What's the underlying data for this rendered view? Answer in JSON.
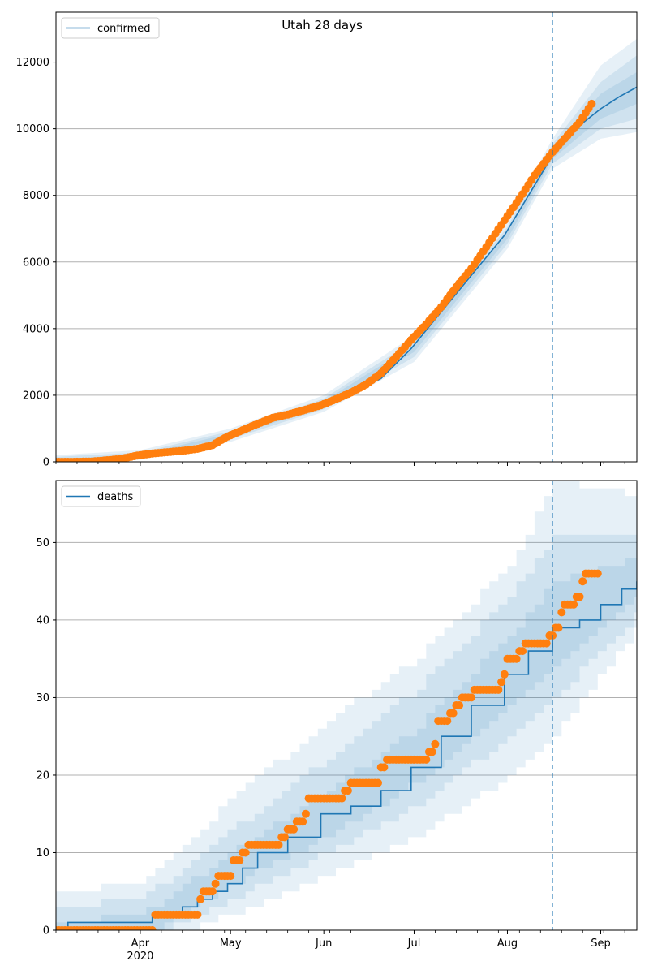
{
  "figure": {
    "title": "Utah 28 days"
  },
  "chart_data": [
    {
      "type": "line",
      "legend": {
        "label": "confirmed",
        "placement": "top-left"
      },
      "x_axis": {
        "tick_labels": [
          "Apr",
          "May",
          "Jun",
          "Jul",
          "Aug",
          "Sep"
        ],
        "tick_dates": [
          "2020-04-01",
          "2020-05-01",
          "2020-06-01",
          "2020-07-01",
          "2020-08-01",
          "2020-09-01"
        ],
        "year_label": "2020",
        "range": [
          "2020-03-04",
          "2020-09-13"
        ]
      },
      "y_axis": {
        "ticks": [
          0,
          2000,
          4000,
          6000,
          8000,
          10000,
          12000
        ],
        "range": [
          0,
          13500
        ]
      },
      "grid": "horizontal",
      "forecast_start": "2020-08-16",
      "colors": {
        "fit": "#1f77b4",
        "observed": "#ff7f0e",
        "band": "#1f77b4"
      },
      "fit_series": {
        "name": "confirmed",
        "points": [
          [
            "2020-03-04",
            0
          ],
          [
            "2020-03-15",
            5
          ],
          [
            "2020-03-25",
            60
          ],
          [
            "2020-04-01",
            150
          ],
          [
            "2020-04-10",
            270
          ],
          [
            "2020-04-20",
            400
          ],
          [
            "2020-04-30",
            750
          ],
          [
            "2020-05-10",
            1150
          ],
          [
            "2020-05-20",
            1420
          ],
          [
            "2020-05-31",
            1700
          ],
          [
            "2020-06-10",
            2050
          ],
          [
            "2020-06-20",
            2500
          ],
          [
            "2020-06-30",
            3400
          ],
          [
            "2020-07-10",
            4500
          ],
          [
            "2020-07-20",
            5600
          ],
          [
            "2020-07-31",
            6800
          ],
          [
            "2020-08-10",
            8300
          ],
          [
            "2020-08-16",
            9200
          ],
          [
            "2020-08-20",
            9700
          ],
          [
            "2020-08-25",
            10100
          ],
          [
            "2020-09-01",
            10600
          ],
          [
            "2020-09-07",
            10950
          ],
          [
            "2020-09-13",
            11250
          ]
        ]
      },
      "bands": [
        {
          "upper": [
            [
              "2020-03-04",
              200
            ],
            [
              "2020-04-01",
              350
            ],
            [
              "2020-05-01",
              1000
            ],
            [
              "2020-06-01",
              2000
            ],
            [
              "2020-07-01",
              3800
            ],
            [
              "2020-08-01",
              7200
            ],
            [
              "2020-08-16",
              9700
            ],
            [
              "2020-09-01",
              11900
            ],
            [
              "2020-09-13",
              12700
            ]
          ],
          "lower": [
            [
              "2020-03-04",
              0
            ],
            [
              "2020-04-01",
              60
            ],
            [
              "2020-05-01",
              600
            ],
            [
              "2020-06-01",
              1500
            ],
            [
              "2020-07-01",
              3000
            ],
            [
              "2020-08-01",
              6400
            ],
            [
              "2020-08-16",
              8800
            ],
            [
              "2020-09-01",
              9700
            ],
            [
              "2020-09-13",
              9900
            ]
          ]
        },
        {
          "upper": [
            [
              "2020-03-04",
              150
            ],
            [
              "2020-04-01",
              280
            ],
            [
              "2020-05-01",
              920
            ],
            [
              "2020-06-01",
              1900
            ],
            [
              "2020-07-01",
              3650
            ],
            [
              "2020-08-01",
              7050
            ],
            [
              "2020-08-16",
              9550
            ],
            [
              "2020-09-01",
              11400
            ],
            [
              "2020-09-13",
              12200
            ]
          ],
          "lower": [
            [
              "2020-03-04",
              0
            ],
            [
              "2020-04-01",
              90
            ],
            [
              "2020-05-01",
              680
            ],
            [
              "2020-06-01",
              1580
            ],
            [
              "2020-07-01",
              3150
            ],
            [
              "2020-08-01",
              6550
            ],
            [
              "2020-08-16",
              8950
            ],
            [
              "2020-09-01",
              10000
            ],
            [
              "2020-09-13",
              10300
            ]
          ]
        },
        {
          "upper": [
            [
              "2020-03-04",
              80
            ],
            [
              "2020-04-01",
              220
            ],
            [
              "2020-05-01",
              850
            ],
            [
              "2020-06-01",
              1820
            ],
            [
              "2020-07-01",
              3520
            ],
            [
              "2020-08-01",
              6900
            ],
            [
              "2020-08-16",
              9350
            ],
            [
              "2020-09-01",
              11050
            ],
            [
              "2020-09-13",
              11700
            ]
          ],
          "lower": [
            [
              "2020-03-04",
              0
            ],
            [
              "2020-04-01",
              120
            ],
            [
              "2020-05-01",
              760
            ],
            [
              "2020-06-01",
              1650
            ],
            [
              "2020-07-01",
              3300
            ],
            [
              "2020-08-01",
              6700
            ],
            [
              "2020-08-16",
              9100
            ],
            [
              "2020-09-01",
              10300
            ],
            [
              "2020-09-13",
              10750
            ]
          ]
        }
      ],
      "observed": {
        "name": "observed",
        "points": [
          [
            "2020-03-04",
            0
          ],
          [
            "2020-03-10",
            0
          ],
          [
            "2020-03-16",
            10
          ],
          [
            "2020-03-20",
            40
          ],
          [
            "2020-03-25",
            80
          ],
          [
            "2020-03-31",
            190
          ],
          [
            "2020-04-05",
            250
          ],
          [
            "2020-04-10",
            290
          ],
          [
            "2020-04-15",
            330
          ],
          [
            "2020-04-20",
            390
          ],
          [
            "2020-04-25",
            500
          ],
          [
            "2020-04-30",
            760
          ],
          [
            "2020-05-05",
            950
          ],
          [
            "2020-05-10",
            1140
          ],
          [
            "2020-05-15",
            1320
          ],
          [
            "2020-05-20",
            1420
          ],
          [
            "2020-05-25",
            1540
          ],
          [
            "2020-05-31",
            1700
          ],
          [
            "2020-06-05",
            1880
          ],
          [
            "2020-06-10",
            2080
          ],
          [
            "2020-06-15",
            2320
          ],
          [
            "2020-06-20",
            2660
          ],
          [
            "2020-06-25",
            3150
          ],
          [
            "2020-06-30",
            3660
          ],
          [
            "2020-07-05",
            4130
          ],
          [
            "2020-07-10",
            4650
          ],
          [
            "2020-07-15",
            5250
          ],
          [
            "2020-07-20",
            5800
          ],
          [
            "2020-07-25",
            6450
          ],
          [
            "2020-07-31",
            7250
          ],
          [
            "2020-08-05",
            7900
          ],
          [
            "2020-08-10",
            8600
          ],
          [
            "2020-08-16",
            9300
          ],
          [
            "2020-08-20",
            9700
          ],
          [
            "2020-08-25",
            10200
          ],
          [
            "2020-08-29",
            10750
          ]
        ]
      }
    },
    {
      "type": "line",
      "legend": {
        "label": "deaths",
        "placement": "top-left"
      },
      "x_axis": {
        "tick_labels": [
          "Apr",
          "May",
          "Jun",
          "Jul",
          "Aug",
          "Sep"
        ],
        "tick_dates": [
          "2020-04-01",
          "2020-05-01",
          "2020-06-01",
          "2020-07-01",
          "2020-08-01",
          "2020-09-01"
        ],
        "year_label": "2020",
        "range": [
          "2020-03-04",
          "2020-09-13"
        ]
      },
      "y_axis": {
        "ticks": [
          0,
          10,
          20,
          30,
          40,
          50
        ],
        "range": [
          0,
          58
        ]
      },
      "grid": "horizontal",
      "forecast_start": "2020-08-16",
      "colors": {
        "fit": "#1f77b4",
        "observed": "#ff7f0e",
        "band": "#1f77b4"
      },
      "fit_series": {
        "name": "deaths",
        "points": [
          [
            "2020-03-04",
            0
          ],
          [
            "2020-03-08",
            1
          ],
          [
            "2020-04-03",
            1
          ],
          [
            "2020-04-05",
            2
          ],
          [
            "2020-04-15",
            3
          ],
          [
            "2020-04-20",
            4
          ],
          [
            "2020-04-25",
            5
          ],
          [
            "2020-04-30",
            6
          ],
          [
            "2020-05-05",
            8
          ],
          [
            "2020-05-10",
            10
          ],
          [
            "2020-05-20",
            12
          ],
          [
            "2020-05-31",
            15
          ],
          [
            "2020-06-10",
            16
          ],
          [
            "2020-06-20",
            18
          ],
          [
            "2020-06-30",
            21
          ],
          [
            "2020-07-10",
            25
          ],
          [
            "2020-07-20",
            29
          ],
          [
            "2020-07-31",
            33
          ],
          [
            "2020-08-08",
            36
          ],
          [
            "2020-08-16",
            39
          ],
          [
            "2020-08-25",
            40
          ],
          [
            "2020-09-01",
            42
          ],
          [
            "2020-09-08",
            44
          ],
          [
            "2020-09-13",
            45
          ]
        ]
      },
      "bands": [
        {
          "upper": [
            [
              "2020-03-04",
              5
            ],
            [
              "2020-04-01",
              6
            ],
            [
              "2020-05-01",
              17
            ],
            [
              "2020-06-01",
              27
            ],
            [
              "2020-07-01",
              35
            ],
            [
              "2020-08-01",
              47
            ],
            [
              "2020-08-16",
              58
            ],
            [
              "2020-09-13",
              56
            ]
          ],
          "lower": [
            [
              "2020-03-04",
              0
            ],
            [
              "2020-04-15",
              0
            ],
            [
              "2020-05-01",
              2
            ],
            [
              "2020-06-01",
              7
            ],
            [
              "2020-07-01",
              12
            ],
            [
              "2020-08-01",
              20
            ],
            [
              "2020-08-16",
              25
            ],
            [
              "2020-09-13",
              39
            ]
          ]
        },
        {
          "upper": [
            [
              "2020-03-04",
              3
            ],
            [
              "2020-04-01",
              4
            ],
            [
              "2020-05-01",
              13
            ],
            [
              "2020-06-01",
              22
            ],
            [
              "2020-07-01",
              31
            ],
            [
              "2020-08-01",
              43
            ],
            [
              "2020-08-16",
              51
            ],
            [
              "2020-09-13",
              51
            ]
          ],
          "lower": [
            [
              "2020-03-04",
              0
            ],
            [
              "2020-04-08",
              0
            ],
            [
              "2020-05-01",
              4
            ],
            [
              "2020-06-01",
              10
            ],
            [
              "2020-07-01",
              16
            ],
            [
              "2020-08-01",
              25
            ],
            [
              "2020-08-16",
              30
            ],
            [
              "2020-09-13",
              41
            ]
          ]
        },
        {
          "upper": [
            [
              "2020-03-04",
              1
            ],
            [
              "2020-04-01",
              2
            ],
            [
              "2020-05-01",
              10
            ],
            [
              "2020-06-01",
              18
            ],
            [
              "2020-07-01",
              26
            ],
            [
              "2020-08-01",
              38
            ],
            [
              "2020-08-16",
              45
            ],
            [
              "2020-09-13",
              48
            ]
          ],
          "lower": [
            [
              "2020-03-04",
              0
            ],
            [
              "2020-04-05",
              0
            ],
            [
              "2020-05-01",
              6
            ],
            [
              "2020-06-01",
              12
            ],
            [
              "2020-07-01",
              19
            ],
            [
              "2020-08-01",
              29
            ],
            [
              "2020-08-16",
              34
            ],
            [
              "2020-09-13",
              43
            ]
          ]
        }
      ],
      "observed": {
        "name": "observed",
        "points": [
          [
            "2020-03-04",
            0
          ],
          [
            "2020-03-10",
            0
          ],
          [
            "2020-03-20",
            0
          ],
          [
            "2020-03-30",
            0
          ],
          [
            "2020-04-05",
            0
          ],
          [
            "2020-04-06",
            2
          ],
          [
            "2020-04-14",
            2
          ],
          [
            "2020-04-20",
            2
          ],
          [
            "2020-04-21",
            4
          ],
          [
            "2020-04-22",
            5
          ],
          [
            "2020-04-26",
            6
          ],
          [
            "2020-04-27",
            7
          ],
          [
            "2020-05-01",
            7
          ],
          [
            "2020-05-02",
            9
          ],
          [
            "2020-05-05",
            10
          ],
          [
            "2020-05-07",
            11
          ],
          [
            "2020-05-15",
            11
          ],
          [
            "2020-05-18",
            12
          ],
          [
            "2020-05-20",
            13
          ],
          [
            "2020-05-23",
            14
          ],
          [
            "2020-05-26",
            15
          ],
          [
            "2020-05-27",
            17
          ],
          [
            "2020-06-06",
            17
          ],
          [
            "2020-06-08",
            18
          ],
          [
            "2020-06-10",
            19
          ],
          [
            "2020-06-18",
            19
          ],
          [
            "2020-06-20",
            21
          ],
          [
            "2020-06-22",
            22
          ],
          [
            "2020-07-04",
            22
          ],
          [
            "2020-07-06",
            23
          ],
          [
            "2020-07-08",
            24
          ],
          [
            "2020-07-09",
            27
          ],
          [
            "2020-07-13",
            28
          ],
          [
            "2020-07-15",
            29
          ],
          [
            "2020-07-17",
            30
          ],
          [
            "2020-07-21",
            31
          ],
          [
            "2020-07-28",
            31
          ],
          [
            "2020-07-30",
            32
          ],
          [
            "2020-07-31",
            33
          ],
          [
            "2020-08-01",
            35
          ],
          [
            "2020-08-05",
            36
          ],
          [
            "2020-08-07",
            37
          ],
          [
            "2020-08-13",
            37
          ],
          [
            "2020-08-15",
            38
          ],
          [
            "2020-08-17",
            39
          ],
          [
            "2020-08-19",
            41
          ],
          [
            "2020-08-20",
            42
          ],
          [
            "2020-08-24",
            43
          ],
          [
            "2020-08-26",
            45
          ],
          [
            "2020-08-27",
            46
          ],
          [
            "2020-08-31",
            46
          ]
        ]
      }
    }
  ]
}
